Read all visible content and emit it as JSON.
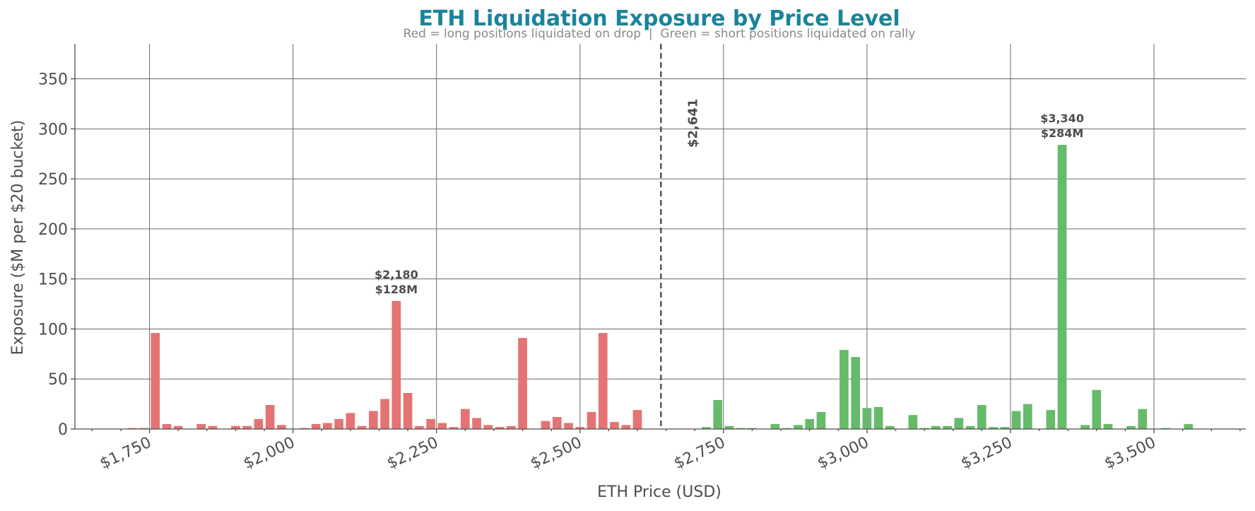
{
  "chart_data": {
    "type": "bar",
    "title": "ETH Liquidation Exposure by Price Level",
    "subtitle": "Red = long positions liquidated on drop  |  Green = short positions liquidated on rally",
    "xlabel": "ETH Price (USD)",
    "ylabel": "Exposure ($M per $20 bucket)",
    "xlim": [
      1620,
      3660
    ],
    "ylim": [
      0,
      385
    ],
    "x_ticks": [
      {
        "value": 1750,
        "label": "$1,750"
      },
      {
        "value": 2000,
        "label": "$2,000"
      },
      {
        "value": 2250,
        "label": "$2,250"
      },
      {
        "value": 2500,
        "label": "$2,500"
      },
      {
        "value": 2750,
        "label": "$2,750"
      },
      {
        "value": 3000,
        "label": "$3,000"
      },
      {
        "value": 3250,
        "label": "$3,250"
      },
      {
        "value": 3500,
        "label": "$3,500"
      }
    ],
    "y_ticks": [
      0,
      50,
      100,
      150,
      200,
      250,
      300,
      350
    ],
    "grid": true,
    "bucket_width": 20,
    "current_price": {
      "value": 2641,
      "label": "$2,641"
    },
    "series": [
      {
        "name": "Longs",
        "color": "#e57373",
        "x": [
          1720,
          1740,
          1760,
          1780,
          1800,
          1840,
          1860,
          1900,
          1920,
          1940,
          1960,
          1980,
          2020,
          2040,
          2060,
          2080,
          2100,
          2120,
          2140,
          2160,
          2180,
          2200,
          2220,
          2240,
          2260,
          2280,
          2300,
          2320,
          2340,
          2360,
          2380,
          2400,
          2440,
          2460,
          2480,
          2500,
          2520,
          2540,
          2560,
          2580,
          2600
        ],
        "values": [
          1,
          1,
          96,
          5,
          3,
          5,
          3,
          3,
          3,
          10,
          24,
          4,
          1,
          5,
          6,
          10,
          16,
          3,
          18,
          30,
          128,
          36,
          3,
          10,
          6,
          2,
          20,
          11,
          4,
          2,
          3,
          91,
          8,
          12,
          6,
          2,
          17,
          96,
          7,
          4,
          19
        ]
      },
      {
        "name": "Shorts",
        "color": "#66bb6a",
        "x": [
          2720,
          2740,
          2760,
          2780,
          2800,
          2840,
          2860,
          2880,
          2900,
          2920,
          2960,
          2980,
          3000,
          3020,
          3040,
          3080,
          3100,
          3120,
          3140,
          3160,
          3180,
          3200,
          3220,
          3240,
          3260,
          3280,
          3320,
          3340,
          3380,
          3400,
          3420,
          3460,
          3480,
          3520,
          3560
        ],
        "values": [
          2,
          29,
          3,
          1,
          1,
          5,
          1,
          4,
          10,
          17,
          79,
          72,
          21,
          22,
          3,
          14,
          1,
          3,
          3,
          11,
          3,
          24,
          2,
          2,
          18,
          25,
          19,
          284,
          4,
          39,
          5,
          3,
          20,
          1,
          5
        ]
      }
    ],
    "annotations": [
      {
        "x": 2180,
        "y": 128,
        "lines": [
          "$2,180",
          "$128M"
        ]
      },
      {
        "x": 3340,
        "y": 284,
        "lines": [
          "$3,340",
          "$284M"
        ]
      }
    ]
  }
}
